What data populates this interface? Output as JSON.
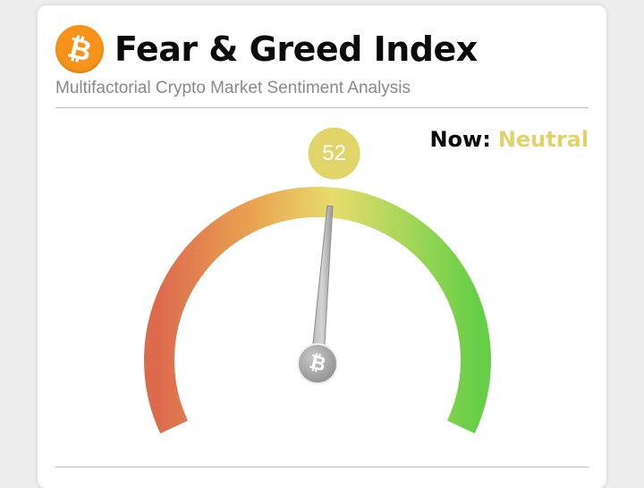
{
  "header": {
    "title": "Fear & Greed Index",
    "logo_icon": "bitcoin-icon",
    "logo_glyph": "₿",
    "logo_color": "#f7931a"
  },
  "subtitle": "Multifactorial Crypto Market Sentiment Analysis",
  "status": {
    "label": "Now:",
    "value": "Neutral",
    "value_color": "#e0d36a"
  },
  "gauge": {
    "value": 52,
    "value_text": "52",
    "min": 0,
    "max": 100,
    "badge_color": "#e1d468",
    "center_icon": "bitcoin-icon",
    "center_glyph": "₿",
    "colors": {
      "fear": "#dc6b4e",
      "low": "#eaa451",
      "mid": "#e6dc6c",
      "high": "#a6d65a",
      "greed": "#67cf47"
    }
  }
}
